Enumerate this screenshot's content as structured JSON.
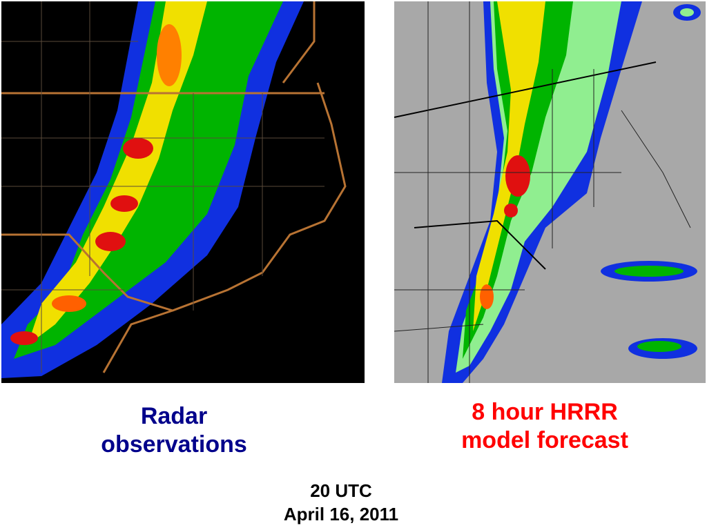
{
  "left_caption": [
    "Radar",
    "observations"
  ],
  "right_caption": [
    "8 hour HRRR",
    "model forecast"
  ],
  "footer": [
    "20 UTC",
    "April 16, 2011"
  ]
}
